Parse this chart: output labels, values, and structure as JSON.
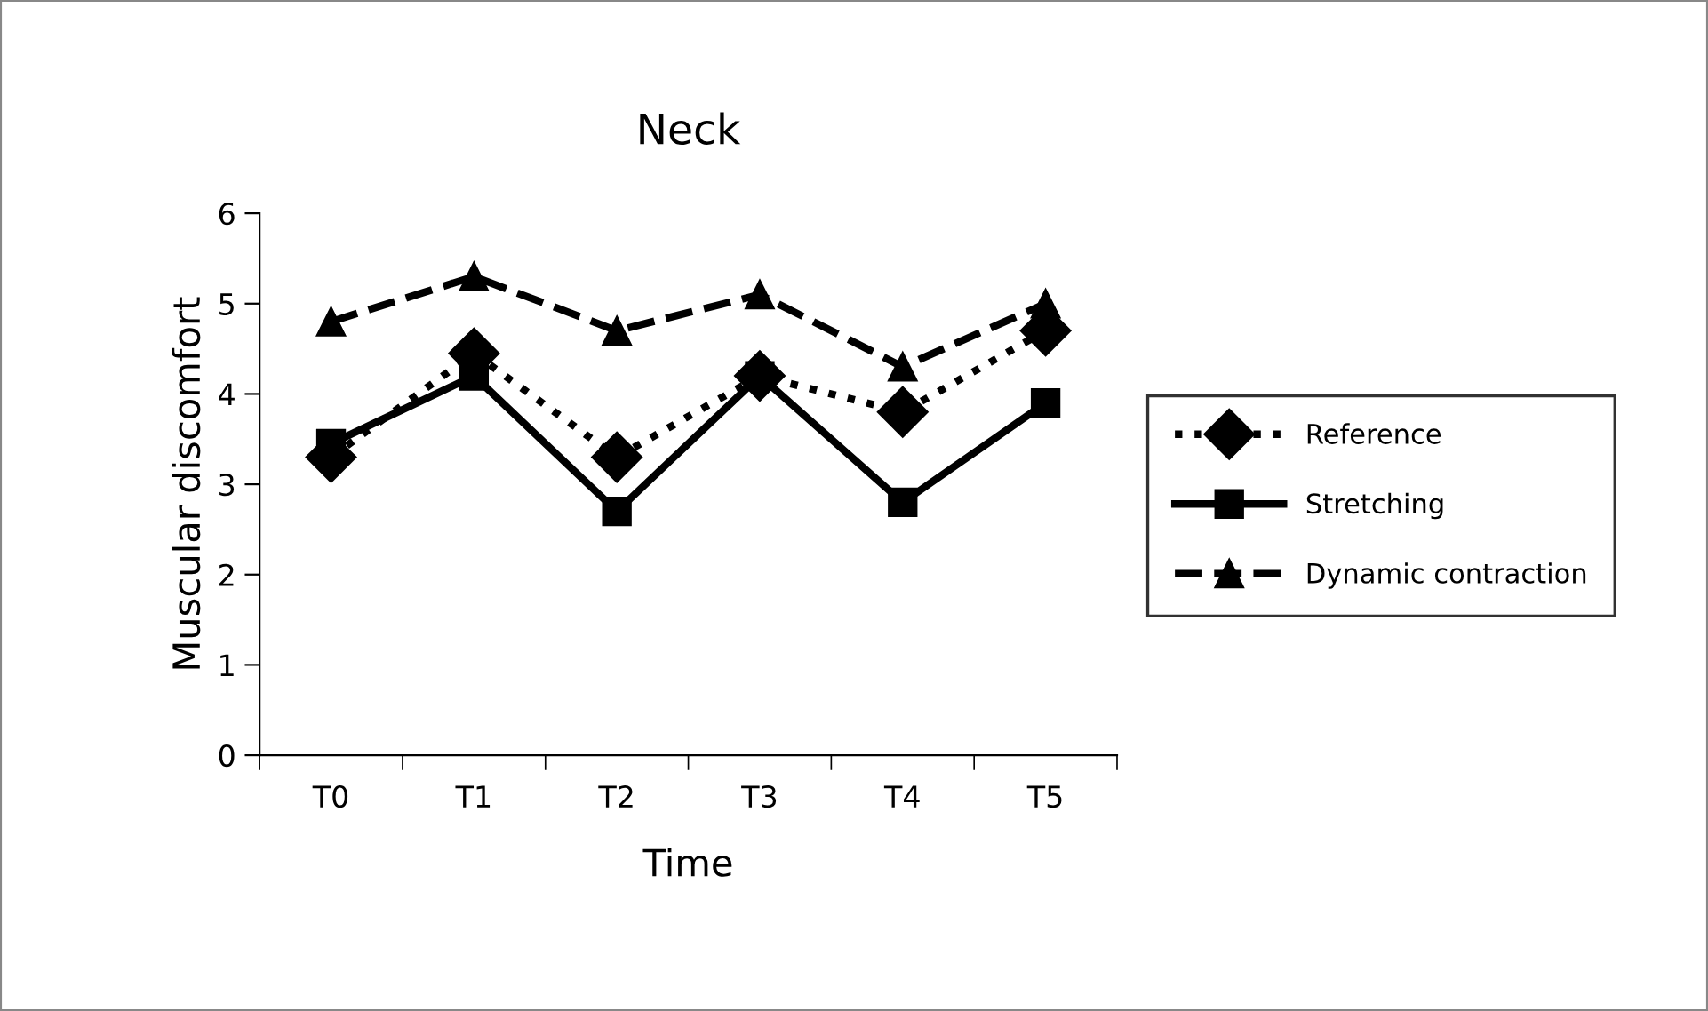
{
  "chart_data": {
    "type": "line",
    "title": "Neck",
    "xlabel": "Time",
    "ylabel": "Muscular discomfort",
    "categories": [
      "T0",
      "T1",
      "T2",
      "T3",
      "T4",
      "T5"
    ],
    "series": [
      {
        "name": "Reference",
        "color": "#000000",
        "marker": "diamond",
        "line_style": "dotted",
        "values": [
          3.3,
          4.45,
          3.3,
          4.2,
          3.8,
          4.7
        ]
      },
      {
        "name": "Stretching",
        "color": "#000000",
        "marker": "square",
        "line_style": "solid",
        "values": [
          3.45,
          4.2,
          2.7,
          4.2,
          2.8,
          3.9
        ]
      },
      {
        "name": "Dynamic contraction",
        "color": "#000000",
        "marker": "triangle",
        "line_style": "dashed",
        "values": [
          4.8,
          5.3,
          4.7,
          5.1,
          4.3,
          5.0
        ]
      }
    ],
    "ylim": [
      0,
      6
    ],
    "yticks": [
      0,
      1,
      2,
      3,
      4,
      5,
      6
    ],
    "grid": false,
    "legend": "right"
  }
}
